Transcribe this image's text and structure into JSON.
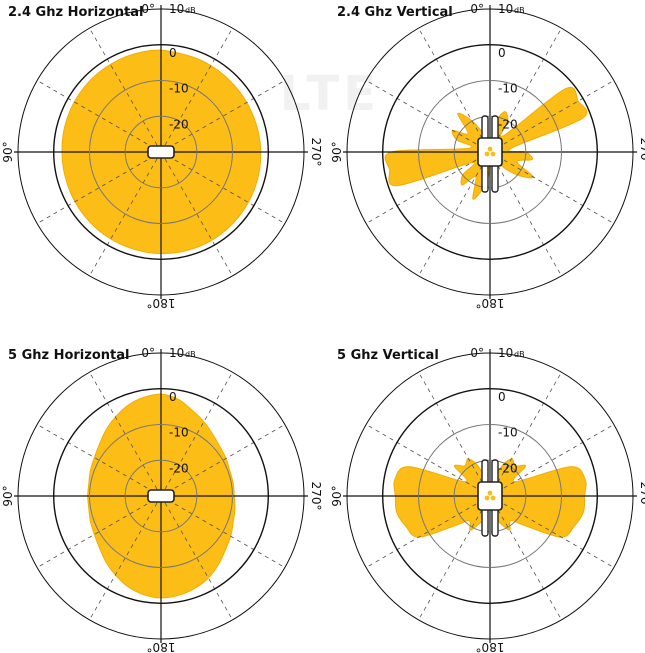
{
  "watermark": "LTE",
  "colors": {
    "lobe": "#fdbd17",
    "lobe_stroke": "#f2ad00",
    "ring_outer": "#111111",
    "ring_inner": "#777777",
    "spoke": "#555555",
    "device": "#222222"
  },
  "chart_data": [
    {
      "type": "polar",
      "title": "2.4 Ghz Horizontal",
      "angle_labels": {
        "top": "0°",
        "left": "90°",
        "bottom": "180°",
        "right": "270°"
      },
      "ring_labels": [
        "10",
        "0",
        "-10",
        "-20"
      ],
      "ring_unit": "dB",
      "radial_range_db": [
        -30,
        10
      ],
      "device": "horizontal",
      "gain_db": [
        -1.5,
        -1.5,
        -1.6,
        -1.7,
        -1.8,
        -1.9,
        -2.0,
        -2.1,
        -2.2,
        -2.3,
        -2.3,
        -2.3,
        -2.2,
        -2.1,
        -2.0,
        -1.9,
        -1.8,
        -1.7,
        -1.6,
        -1.5,
        -1.5,
        -1.5,
        -1.6,
        -1.7,
        -1.8,
        -1.9,
        -2.0,
        -2.1,
        -2.2,
        -2.3,
        -2.3,
        -2.3,
        -2.2,
        -2.1,
        -2.0,
        -1.9
      ]
    },
    {
      "type": "polar",
      "title": "2.4 Ghz Vertical",
      "angle_labels": {
        "top": "0°",
        "left": "90°",
        "bottom": "180°",
        "right": "270°"
      },
      "ring_labels": [
        "10",
        "0",
        "-10",
        "-20"
      ],
      "ring_unit": "dB",
      "radial_range_db": [
        -30,
        10
      ],
      "device": "vertical",
      "gain_db": [
        -30,
        -30,
        -25,
        -20,
        -16,
        -22,
        -18,
        -20,
        -24,
        -2.5,
        -1.5,
        -2.5,
        -24,
        -20,
        -18,
        -22,
        -16,
        -20,
        -25,
        -30,
        -30,
        -30,
        -25,
        -20,
        -16,
        -22,
        -18,
        -20,
        -24,
        -2.5,
        -1.5,
        -2.5,
        -24,
        -20,
        -18,
        -22
      ]
    },
    {
      "type": "polar",
      "title": "5 Ghz Horizontal",
      "angle_labels": {
        "top": "0°",
        "left": "90°",
        "bottom": "180°",
        "right": "270°"
      },
      "ring_labels": [
        "10",
        "0",
        "-10",
        "-20"
      ],
      "ring_unit": "dB",
      "radial_range_db": [
        -30,
        10
      ],
      "device": "horizontal",
      "gain_db": [
        -1.5,
        -2.0,
        -3.0,
        -4.5,
        -6.0,
        -7.5,
        -8.5,
        -9.0,
        -9.5,
        -9.5,
        -9.5,
        -9.0,
        -8.5,
        -7.5,
        -6.0,
        -4.5,
        -3.0,
        -2.0,
        -1.5,
        -1.8,
        -2.5,
        -3.5,
        -5.0,
        -6.5,
        -7.5,
        -8.5,
        -9.0,
        -9.5,
        -9.5,
        -9.5,
        -9.0,
        -8.5,
        -7.5,
        -6.0,
        -4.5,
        -2.5
      ]
    },
    {
      "type": "polar",
      "title": "5 Ghz Vertical",
      "angle_labels": {
        "top": "0°",
        "left": "90°",
        "bottom": "180°",
        "right": "270°"
      },
      "ring_labels": [
        "10",
        "0",
        "-10",
        "-20"
      ],
      "ring_unit": "dB",
      "radial_range_db": [
        -30,
        10
      ],
      "device": "vertical",
      "gain_db": [
        -30,
        -30,
        -22,
        -18,
        -19,
        -17,
        -22,
        -6,
        -3,
        -3.5,
        -3.5,
        -5,
        -7,
        -17,
        -21,
        -19,
        -22,
        -24,
        -30,
        -24,
        -22,
        -19,
        -21,
        -17,
        -7,
        -5,
        -3.5,
        -3.5,
        -3,
        -6,
        -22,
        -17,
        -19,
        -18,
        -22,
        -30
      ]
    }
  ]
}
